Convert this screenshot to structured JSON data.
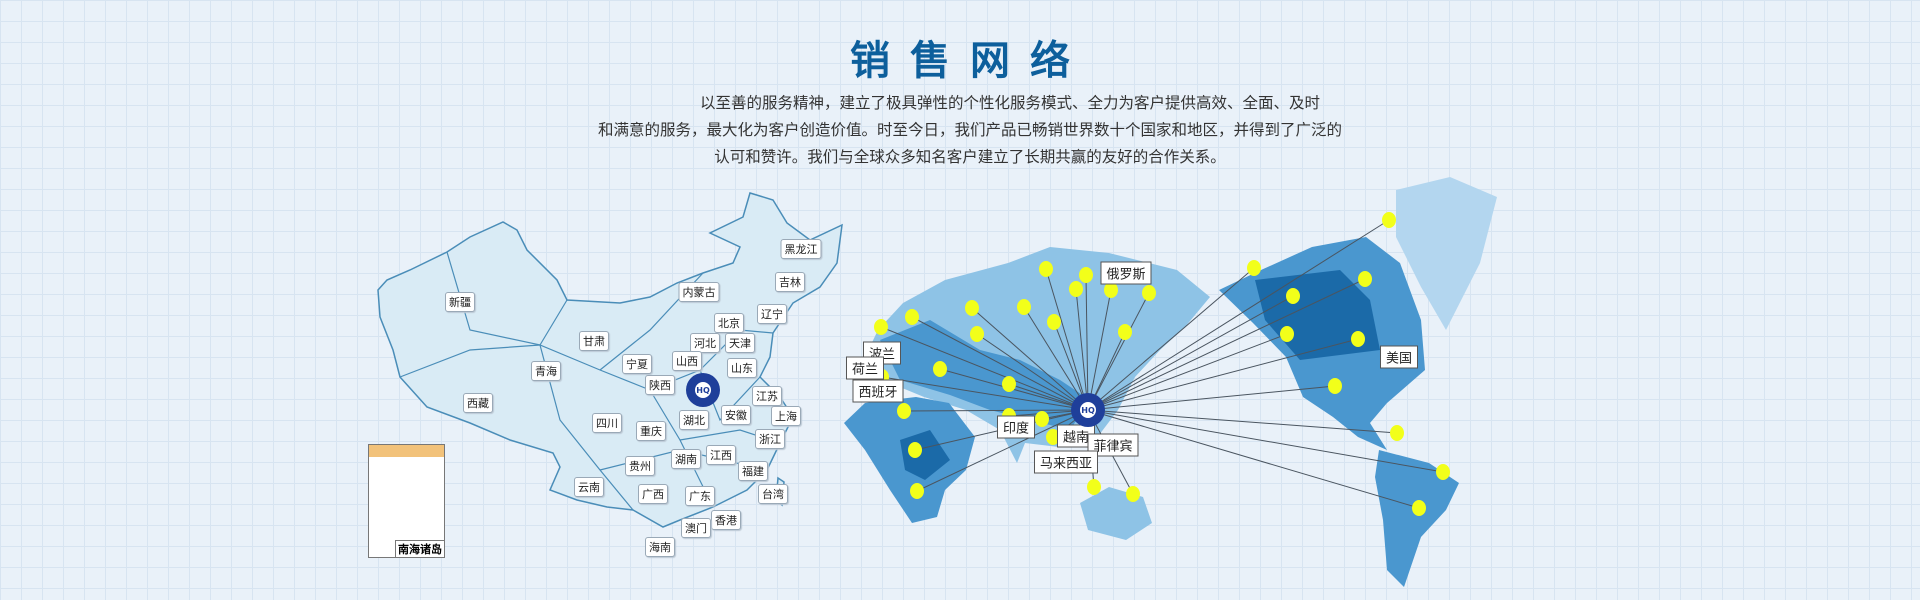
{
  "header": {
    "title": "销售网络",
    "intro_lines": [
      "以至善的服务精神，建立了极具弹性的个性化服务模式、全力为客户提供高效、全面、及时",
      "和满意的服务，最大化为客户创造价值。时至今日，我们产品已畅销世界数十个国家和地区，并得到了广泛的",
      "认可和赞许。我们与全球众多知名客户建立了长期共赢的友好的合作关系。"
    ]
  },
  "china_map": {
    "provinces": [
      "新疆",
      "西藏",
      "青海",
      "甘肃",
      "宁夏",
      "内蒙古",
      "黑龙江",
      "吉林",
      "辽宁",
      "北京",
      "河北",
      "天津",
      "山西",
      "山东",
      "陕西",
      "江苏",
      "上海",
      "安徽",
      "湖北",
      "四川",
      "重庆",
      "浙江",
      "湖南",
      "江西",
      "贵州",
      "福建",
      "云南",
      "广西",
      "广东",
      "台湾",
      "香港",
      "澳门",
      "海南"
    ],
    "inset_label": "南海诸岛",
    "logo_icon": "company-gear-logo"
  },
  "world_map": {
    "countries": [
      "俄罗斯",
      "波兰",
      "荷兰",
      "西班牙",
      "印度",
      "越南",
      "菲律宾",
      "马来西亚",
      "美国"
    ],
    "hub_icon": "company-gear-logo"
  },
  "colors": {
    "title": "#0d5f9c",
    "china_fill": "#d9ebf5",
    "china_border": "#4a8db8",
    "world_light": "#8ec3e6",
    "world_mid": "#4a97cf",
    "world_dark": "#1b6aa8",
    "dot": "#f2ff1a"
  }
}
